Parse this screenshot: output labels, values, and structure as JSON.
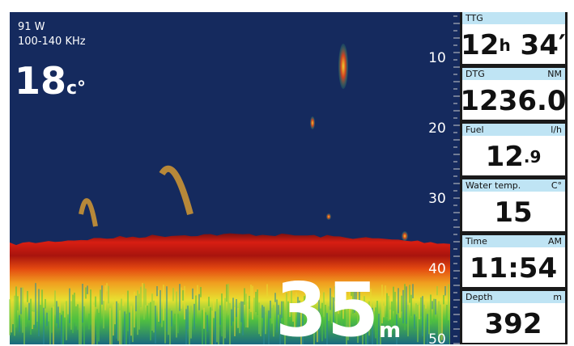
{
  "sonar": {
    "power": "91 W",
    "frequency": "100-140 KHz",
    "temperature": {
      "value": "18",
      "unit": "c°"
    },
    "depth_scale": [
      "10",
      "20",
      "30",
      "40",
      "50"
    ],
    "depth": {
      "value": "35",
      "unit": "m"
    }
  },
  "panels": [
    {
      "label": "TTG",
      "value": [
        "12",
        "h",
        " 34′"
      ]
    },
    {
      "label": "DTG",
      "unit": "NM",
      "value": [
        "1236.0"
      ]
    },
    {
      "label": "Fuel",
      "unit": "l/h",
      "value": [
        "12",
        ".9"
      ]
    },
    {
      "label": "Water temp.",
      "unit": "C°",
      "value": [
        "15"
      ]
    },
    {
      "label": "Time",
      "unit": "AM",
      "value": [
        "11:54"
      ]
    },
    {
      "label": "Depth",
      "unit": "m",
      "value": [
        "392"
      ]
    }
  ]
}
